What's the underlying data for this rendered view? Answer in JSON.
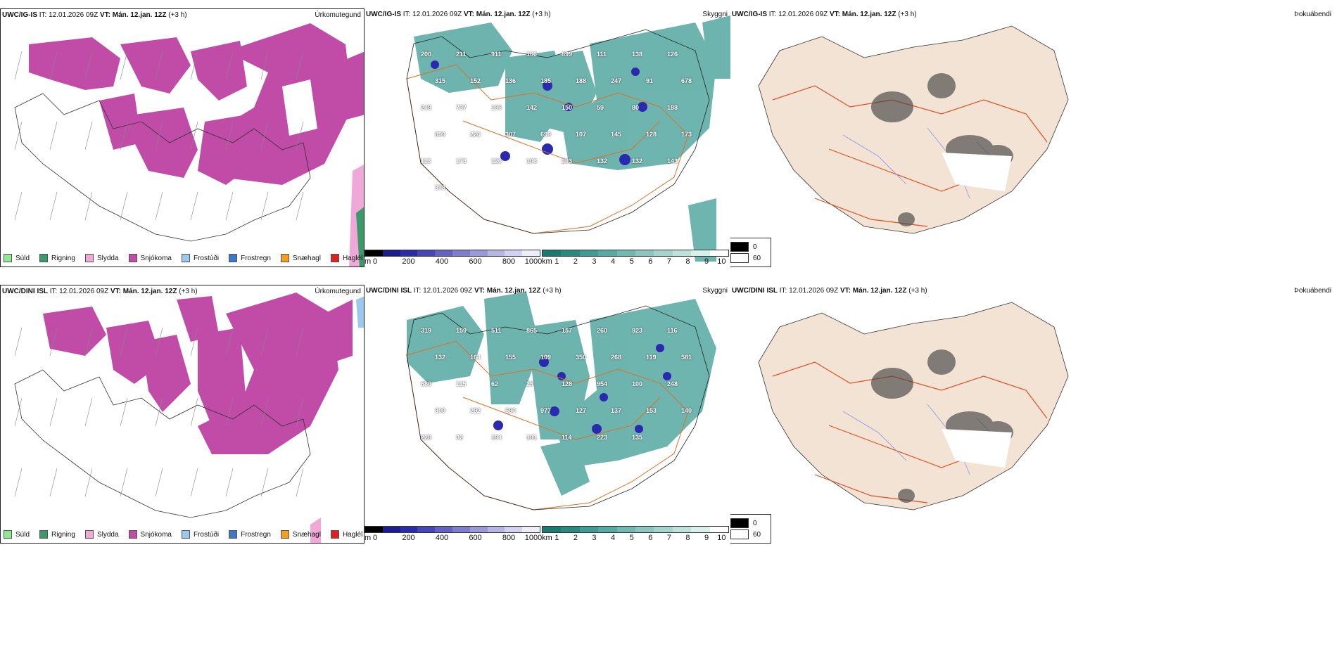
{
  "rows": [
    {
      "model": "UWC/IG-IS",
      "it_label": "IT:",
      "it_value": "12.01.2026 09Z",
      "vt_label": "VT:",
      "vt_value": "Mán. 12.jan. 12Z",
      "lead": "(+3 h)",
      "labels": [
        "200",
        "211",
        "911",
        "166",
        "899",
        "111",
        "138",
        "126",
        "315",
        "152",
        "136",
        "185",
        "188",
        "247",
        "91",
        "678",
        "248",
        "737",
        "136",
        "142",
        "150",
        "59",
        "80",
        "188",
        "899",
        "220",
        "307",
        "699",
        "107",
        "145",
        "128",
        "173",
        "113",
        "173",
        "126",
        "106",
        "293",
        "132",
        "132",
        "143",
        "378"
      ]
    },
    {
      "model": "UWC/DINI ISL",
      "it_label": "IT:",
      "it_value": "12.01.2026 09Z",
      "vt_label": "VT:",
      "vt_value": "Mán. 12.jan. 12Z",
      "lead": "(+3 h)",
      "labels": [
        "319",
        "159",
        "511",
        "865",
        "157",
        "260",
        "923",
        "116",
        "132",
        "164",
        "155",
        "109",
        "350",
        "268",
        "119",
        "581",
        "680",
        "115",
        "62",
        "25",
        "128",
        "954",
        "100",
        "248",
        "309",
        "292",
        "680",
        "977",
        "127",
        "137",
        "153",
        "140",
        "228",
        "32",
        "194",
        "181",
        "114",
        "223",
        "135"
      ]
    }
  ],
  "panel_titles": {
    "precip": "Úrkomutegund",
    "visibility": "Skyggni",
    "cloud": "Þokuábendi"
  },
  "precip_legend": [
    {
      "label": "Súld",
      "color": "#90e890"
    },
    {
      "label": "Rigning",
      "color": "#3a9a6a"
    },
    {
      "label": "Slydda",
      "color": "#f0a8d8"
    },
    {
      "label": "Snjókoma",
      "color": "#c04ca8"
    },
    {
      "label": "Frostúði",
      "color": "#9cc8f0"
    },
    {
      "label": "Frostregn",
      "color": "#3c78c8"
    },
    {
      "label": "Snæhagl",
      "color": "#f0a020"
    },
    {
      "label": "Haglél",
      "color": "#e02020"
    }
  ],
  "ceiling_scale": {
    "unit": "m",
    "ticks": [
      "0",
      "200",
      "400",
      "600",
      "800",
      "1000"
    ]
  },
  "visibility_scale": {
    "unit": "km",
    "ticks": [
      "1",
      "2",
      "3",
      "4",
      "5",
      "6",
      "7",
      "8",
      "9",
      "10"
    ]
  },
  "fog_legend": {
    "black": "0",
    "white": "60"
  }
}
